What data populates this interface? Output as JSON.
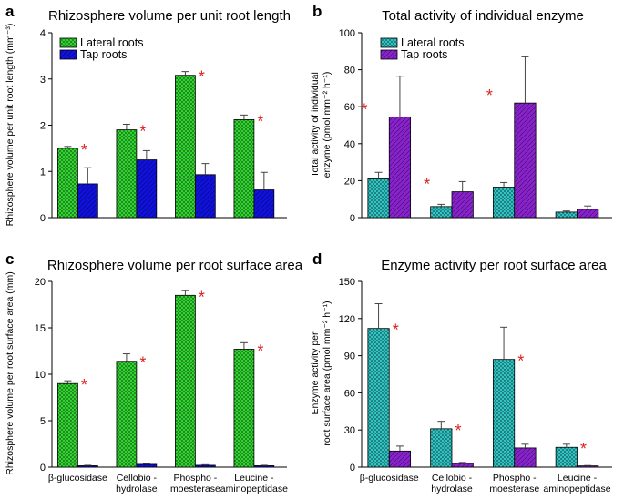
{
  "colors": {
    "lateral": "#33dd33",
    "tap_ab": "#1111dd",
    "lateral_enzyme": "#33cccc",
    "tap_enzyme": "#8822cc",
    "star": "#dd2222",
    "axis": "#000000"
  },
  "star_symbol": "*",
  "chart_data": [
    {
      "panel": "a",
      "type": "bar",
      "title": "Rhizosphere volume per unit root length",
      "ylabel_lines": [
        "Rhizosphere volume per unit root length (mm⁻³)"
      ],
      "ylim": [
        0,
        4
      ],
      "yticks": [
        0,
        1,
        2,
        3,
        4
      ],
      "categories": [
        "β-glucosidase",
        "Cellobio - hydrolase",
        "Phospho - moesterase",
        "Leucine - aminopeptidase"
      ],
      "category_labels_visible": false,
      "legend": {
        "position": "top-left",
        "entries": [
          "Lateral roots",
          "Tap roots"
        ]
      },
      "series": [
        {
          "name": "Lateral roots",
          "color_key": "lateral",
          "pattern": "crosshatch",
          "values": [
            1.5,
            1.9,
            3.08,
            2.12
          ],
          "errors": [
            0.04,
            0.12,
            0.08,
            0.1
          ]
        },
        {
          "name": "Tap roots",
          "color_key": "tap_ab",
          "pattern": "diagonal",
          "values": [
            0.73,
            1.25,
            0.93,
            0.6
          ],
          "errors": [
            0.35,
            0.2,
            0.24,
            0.38
          ]
        }
      ],
      "significance": [
        true,
        true,
        true,
        true
      ]
    },
    {
      "panel": "b",
      "type": "bar",
      "title": "Total  activity of individual enzyme",
      "ylabel_lines": [
        "Total  activity of individual",
        "enzyme (pmol mm⁻² h⁻¹)"
      ],
      "ylim": [
        0,
        100
      ],
      "yticks": [
        0,
        20,
        40,
        60,
        80,
        100
      ],
      "categories": [
        "β-glucosidase",
        "Cellobio - hydrolase",
        "Phospho - moesterase",
        "Leucine - aminopeptidase"
      ],
      "category_labels_visible": false,
      "legend": {
        "position": "top-left",
        "entries": [
          "Lateral roots",
          "Tap roots"
        ]
      },
      "series": [
        {
          "name": "Lateral roots",
          "color_key": "lateral_enzyme",
          "pattern": "crosshatch",
          "values": [
            21,
            6,
            16.5,
            3
          ],
          "errors": [
            3.5,
            1.2,
            2.5,
            0.6
          ]
        },
        {
          "name": "Tap roots",
          "color_key": "tap_enzyme",
          "pattern": "diagonal",
          "values": [
            54.5,
            14,
            62,
            4.5
          ],
          "errors": [
            22,
            5.5,
            25,
            1.8
          ]
        }
      ],
      "significance": [
        true,
        true,
        true,
        false
      ]
    },
    {
      "panel": "c",
      "type": "bar",
      "title": "Rhizosphere volume per root surface area",
      "ylabel_lines": [
        "Rhizosphere volume per root surface area (mm)"
      ],
      "ylim": [
        0,
        20
      ],
      "yticks": [
        0,
        5,
        10,
        15,
        20
      ],
      "categories": [
        "β-glucosidase",
        "Cellobio - hydrolase",
        "Phospho - moesterase",
        "Leucine - aminopeptidase"
      ],
      "category_labels_visible": true,
      "legend": null,
      "series": [
        {
          "name": "Lateral roots",
          "color_key": "lateral",
          "pattern": "crosshatch",
          "values": [
            9,
            11.4,
            18.5,
            12.7
          ],
          "errors": [
            0.3,
            0.8,
            0.5,
            0.7
          ]
        },
        {
          "name": "Tap roots",
          "color_key": "tap_ab",
          "pattern": "diagonal",
          "values": [
            0.15,
            0.3,
            0.2,
            0.15
          ],
          "errors": [
            0.05,
            0.08,
            0.06,
            0.05
          ]
        }
      ],
      "significance": [
        true,
        true,
        true,
        true
      ]
    },
    {
      "panel": "d",
      "type": "bar",
      "title": "Enzyme activity per root surface area",
      "ylabel_lines": [
        "Enzyme activity per",
        "root surface area (pmol mm⁻² h⁻¹)"
      ],
      "ylim": [
        0,
        150
      ],
      "yticks": [
        0,
        30,
        60,
        90,
        120,
        150
      ],
      "categories": [
        "β-glucosidase",
        "Cellobio - hydrolase",
        "Phospho - moesterase",
        "Leucine - aminopeptidase"
      ],
      "category_labels_visible": true,
      "legend": null,
      "series": [
        {
          "name": "Lateral roots",
          "color_key": "lateral_enzyme",
          "pattern": "crosshatch",
          "values": [
            112,
            31,
            87,
            16
          ],
          "errors": [
            20,
            6,
            26,
            2.5
          ]
        },
        {
          "name": "Tap roots",
          "color_key": "tap_enzyme",
          "pattern": "diagonal",
          "values": [
            13,
            3,
            15.5,
            1
          ],
          "errors": [
            4,
            0.8,
            3,
            0.3
          ]
        }
      ],
      "significance": [
        true,
        true,
        true,
        true
      ]
    }
  ]
}
